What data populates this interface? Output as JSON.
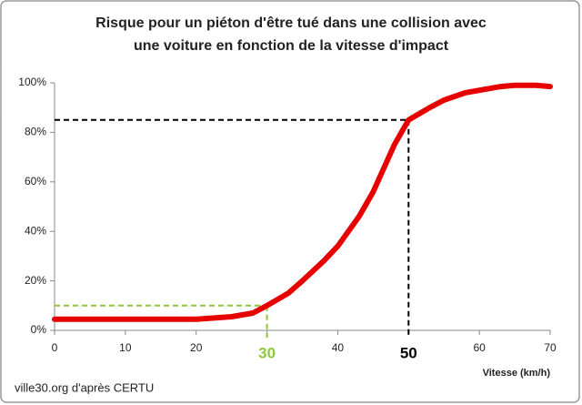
{
  "chart_data": {
    "type": "line",
    "title": [
      "Risque pour un piéton d'être tué dans une collision avec",
      "une voiture en fonction de la vitesse d'impact"
    ],
    "x_label": "Vitesse (km/h)",
    "source": "ville30.org d'après CERTU",
    "x": [
      0,
      5,
      10,
      15,
      20,
      25,
      28,
      30,
      33,
      35,
      38,
      40,
      43,
      45,
      48,
      50,
      53,
      55,
      58,
      60,
      63,
      65,
      68,
      70
    ],
    "values": [
      4.5,
      4.5,
      4.5,
      4.5,
      4.5,
      5.5,
      7,
      10,
      15,
      20,
      28,
      34,
      46,
      56,
      75,
      85,
      90,
      93,
      96,
      97,
      98.5,
      99,
      99,
      98.5
    ],
    "color": "#e60000",
    "xlim": [
      0,
      70
    ],
    "xticks": [
      0,
      10,
      20,
      30,
      40,
      50,
      60,
      70
    ],
    "ylim": [
      0,
      100
    ],
    "yticks": [
      {
        "value": 0,
        "label": "0%"
      },
      {
        "value": 20,
        "label": "20%"
      },
      {
        "value": 40,
        "label": "40%"
      },
      {
        "value": 60,
        "label": "60%"
      },
      {
        "value": 80,
        "label": "80%"
      },
      {
        "value": 100,
        "label": "100%"
      }
    ],
    "highlights": [
      {
        "x": 30,
        "y": 10,
        "color": "#8dc63f"
      },
      {
        "x": 50,
        "y": 85,
        "color": "#000000"
      }
    ]
  }
}
